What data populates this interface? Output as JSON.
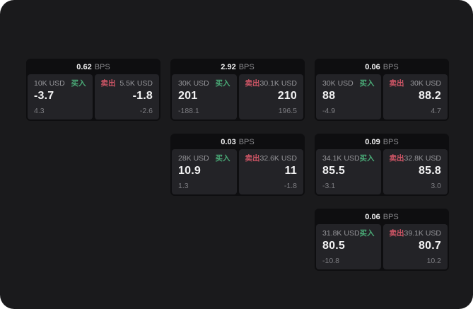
{
  "labels": {
    "buy": "买入",
    "sell": "卖出",
    "bps_unit": "BPS"
  },
  "colors": {
    "window_bg": "#1a1a1c",
    "card_bg": "#0e0e10",
    "panel_bg": "#232327",
    "buy_green": "#4aab77",
    "sell_red": "#cd5565",
    "value_white": "#f2f2f3",
    "label_grey": "#96969a",
    "sub_grey": "#7d7d82"
  },
  "cards": [
    {
      "bps": "0.62",
      "buy": {
        "size": "10K USD",
        "price": "-3.7",
        "delta": "4.3"
      },
      "sell": {
        "size": "5.5K USD",
        "price": "-1.8",
        "delta": "-2.6"
      }
    },
    {
      "bps": "2.92",
      "buy": {
        "size": "30K USD",
        "price": "201",
        "delta": "-188.1"
      },
      "sell": {
        "size": "30.1K USD",
        "price": "210",
        "delta": "196.5"
      }
    },
    {
      "bps": "0.06",
      "buy": {
        "size": "30K USD",
        "price": "88",
        "delta": "-4.9"
      },
      "sell": {
        "size": "30K USD",
        "price": "88.2",
        "delta": "4.7"
      }
    },
    {
      "bps": "0.03",
      "buy": {
        "size": "28K USD",
        "price": "10.9",
        "delta": "1.3"
      },
      "sell": {
        "size": "32.6K USD",
        "price": "11",
        "delta": "-1.8"
      }
    },
    {
      "bps": "0.09",
      "buy": {
        "size": "34.1K USD",
        "price": "85.5",
        "delta": "-3.1"
      },
      "sell": {
        "size": "32.8K USD",
        "price": "85.8",
        "delta": "3.0"
      }
    },
    {
      "bps": "0.06",
      "buy": {
        "size": "31.8K USD",
        "price": "80.5",
        "delta": "-10.8"
      },
      "sell": {
        "size": "39.1K USD",
        "price": "80.7",
        "delta": "10.2"
      }
    }
  ]
}
